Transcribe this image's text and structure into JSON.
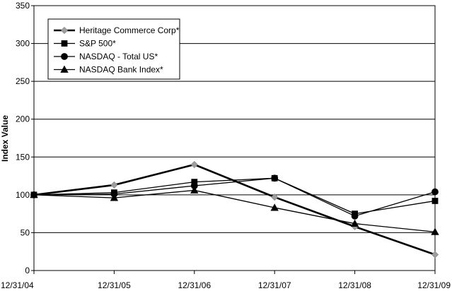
{
  "chart_data": {
    "type": "line",
    "ylabel": "Index Value",
    "xlabel": "",
    "ylim": [
      0,
      350
    ],
    "yticks": [
      0,
      50,
      100,
      150,
      200,
      250,
      300,
      350
    ],
    "categories": [
      "12/31/04",
      "12/31/05",
      "12/31/06",
      "12/31/07",
      "12/31/08",
      "12/31/09"
    ],
    "grid": "horizontal",
    "legend": "top-left",
    "series": [
      {
        "name": "Heritage Commerce Corp*",
        "marker": "diamond",
        "color": "#9e9e9e",
        "line_color": "#000000",
        "line_weight": "heavy",
        "values": [
          100,
          113,
          140,
          97,
          58,
          21
        ]
      },
      {
        "name": "S&P 500*",
        "marker": "square",
        "color": "#000000",
        "line_color": "#000000",
        "line_weight": "normal",
        "values": [
          100,
          103,
          117,
          122,
          75,
          92
        ]
      },
      {
        "name": "NASDAQ - Total US*",
        "marker": "circle",
        "color": "#000000",
        "line_color": "#000000",
        "line_weight": "normal",
        "values": [
          100,
          101,
          112,
          122,
          72,
          104
        ]
      },
      {
        "name": "NASDAQ Bank Index*",
        "marker": "triangle",
        "color": "#000000",
        "line_color": "#000000",
        "line_weight": "normal",
        "values": [
          100,
          96,
          106,
          83,
          62,
          51
        ]
      }
    ]
  }
}
